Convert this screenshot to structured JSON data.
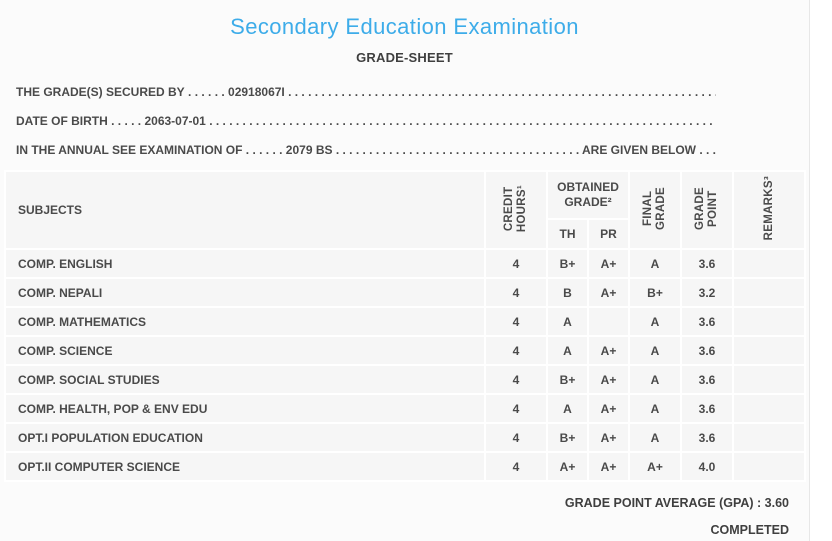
{
  "page": {
    "title": "Secondary Education Examination",
    "subtitle": "GRADE-SHEET"
  },
  "info_lines": [
    {
      "label": "THE GRADE(S) SECURED BY",
      "sep": " . . . . . . ",
      "value": "02918067I",
      "suffix": ""
    },
    {
      "label": "DATE OF BIRTH",
      "sep": " . . . . . ",
      "value": "2063-07-01",
      "suffix": ""
    },
    {
      "label": "IN THE ANNUAL SEE EXAMINATION OF",
      "sep": " . . . . . . ",
      "value": "2079 BS",
      "suffix": " ARE GIVEN BELOW . . ."
    }
  ],
  "fill_dots": " . . . . . . . . . . . . . . . . . . . . . . . . . . . . . . . . . . . . . . . . . . . . . . . . . . . . . . . . . . . . . . . . . . . . . . . . . . . . . . . . . . . . . . . . . . . . . . . . . . . .",
  "table": {
    "headers": {
      "subjects": "SUBJECTS",
      "credit_hours": "CREDIT\nHOURS¹",
      "obtained_grade": "OBTAINED\nGRADE²",
      "th": "TH",
      "pr": "PR",
      "final_grade": "FINAL\nGRADE",
      "grade_point": "GRADE\nPOINT",
      "remarks": "REMARKS³"
    },
    "rows": [
      {
        "subject": "COMP. ENGLISH",
        "credit_hours": "4",
        "th": "B+",
        "pr": "A+",
        "final_grade": "A",
        "grade_point": "3.6",
        "remarks": ""
      },
      {
        "subject": "COMP. NEPALI",
        "credit_hours": "4",
        "th": "B",
        "pr": "A+",
        "final_grade": "B+",
        "grade_point": "3.2",
        "remarks": ""
      },
      {
        "subject": "COMP. MATHEMATICS",
        "credit_hours": "4",
        "th": "A",
        "pr": "",
        "final_grade": "A",
        "grade_point": "3.6",
        "remarks": ""
      },
      {
        "subject": "COMP. SCIENCE",
        "credit_hours": "4",
        "th": "A",
        "pr": "A+",
        "final_grade": "A",
        "grade_point": "3.6",
        "remarks": ""
      },
      {
        "subject": "COMP. SOCIAL STUDIES",
        "credit_hours": "4",
        "th": "B+",
        "pr": "A+",
        "final_grade": "A",
        "grade_point": "3.6",
        "remarks": ""
      },
      {
        "subject": "COMP. HEALTH, POP & ENV EDU",
        "credit_hours": "4",
        "th": "A",
        "pr": "A+",
        "final_grade": "A",
        "grade_point": "3.6",
        "remarks": ""
      },
      {
        "subject": "OPT.I POPULATION EDUCATION",
        "credit_hours": "4",
        "th": "B+",
        "pr": "A+",
        "final_grade": "A",
        "grade_point": "3.6",
        "remarks": ""
      },
      {
        "subject": "OPT.II COMPUTER SCIENCE",
        "credit_hours": "4",
        "th": "A+",
        "pr": "A+",
        "final_grade": "A+",
        "grade_point": "4.0",
        "remarks": ""
      }
    ]
  },
  "footer": {
    "gpa_line": "GRADE POINT AVERAGE (GPA) : 3.60",
    "status": "COMPLETED"
  },
  "colors": {
    "title_blue": "#3dace9",
    "text_dark": "#4a4a4a",
    "cell_bg": "#f6f6f6",
    "page_bg": "#fbfbfb"
  }
}
